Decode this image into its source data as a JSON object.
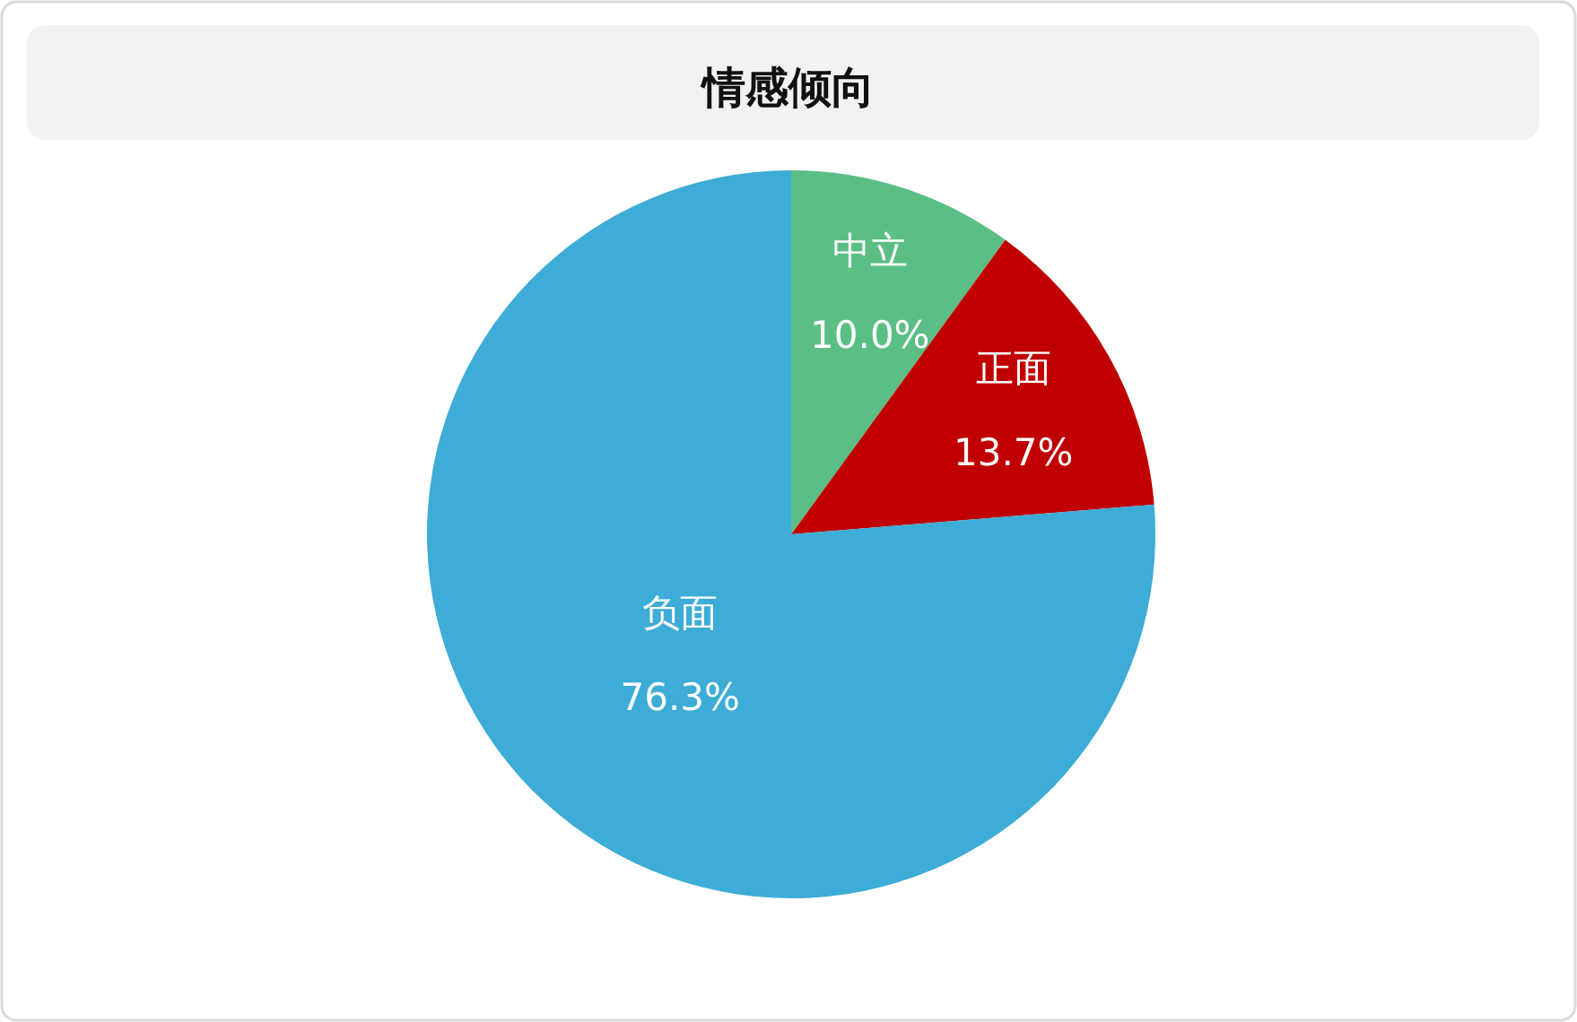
{
  "chart_data": {
    "type": "pie",
    "title": "情感倾向",
    "categories": [
      "中立",
      "正面",
      "负面"
    ],
    "values": [
      10.0,
      13.7,
      76.3
    ],
    "colors": [
      "#5bbf85",
      "#c00000",
      "#3dacd6"
    ],
    "value_labels": [
      "10.0%",
      "13.7%",
      "76.3%"
    ],
    "legend": false
  }
}
